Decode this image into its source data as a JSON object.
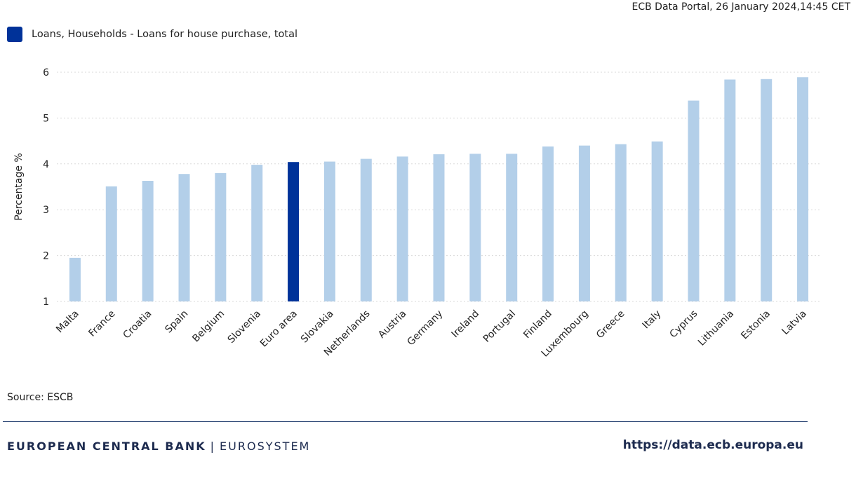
{
  "header": {
    "timestamp": "ECB Data Portal, 26 January 2024,14:45 CET"
  },
  "chart_data": {
    "type": "bar",
    "series": [
      {
        "name": "Loans, Households - Loans for house purchase, total",
        "values": [
          1.95,
          3.51,
          3.63,
          3.78,
          3.8,
          3.98,
          4.04,
          4.05,
          4.11,
          4.16,
          4.21,
          4.22,
          4.22,
          4.38,
          4.4,
          4.43,
          4.49,
          5.38,
          5.84,
          5.85,
          5.89
        ]
      }
    ],
    "categories": [
      "Malta",
      "France",
      "Croatia",
      "Spain",
      "Belgium",
      "Slovenia",
      "Euro area",
      "Slovakia",
      "Netherlands",
      "Austria",
      "Germany",
      "Ireland",
      "Portugal",
      "Finland",
      "Luxembourg",
      "Greece",
      "Italy",
      "Cyprus",
      "Lithuania",
      "Estonia",
      "Latvia"
    ],
    "highlight_category": "Euro area",
    "ylabel": "Percentage %",
    "xlabel": "",
    "ylim": [
      1,
      6
    ],
    "yticks": [
      1,
      2,
      3,
      4,
      5,
      6
    ],
    "grid": true,
    "legend_position": "top-left",
    "colors": {
      "bar": "#b3cfe9",
      "highlight": "#003299",
      "grid": "#d9d9d9"
    }
  },
  "footer": {
    "source": "Source: ESCB",
    "brand_main": "EUROPEAN CENTRAL BANK",
    "brand_separator": "|",
    "brand_sub": "EUROSYSTEM",
    "url": "https://data.ecb.europa.eu"
  }
}
